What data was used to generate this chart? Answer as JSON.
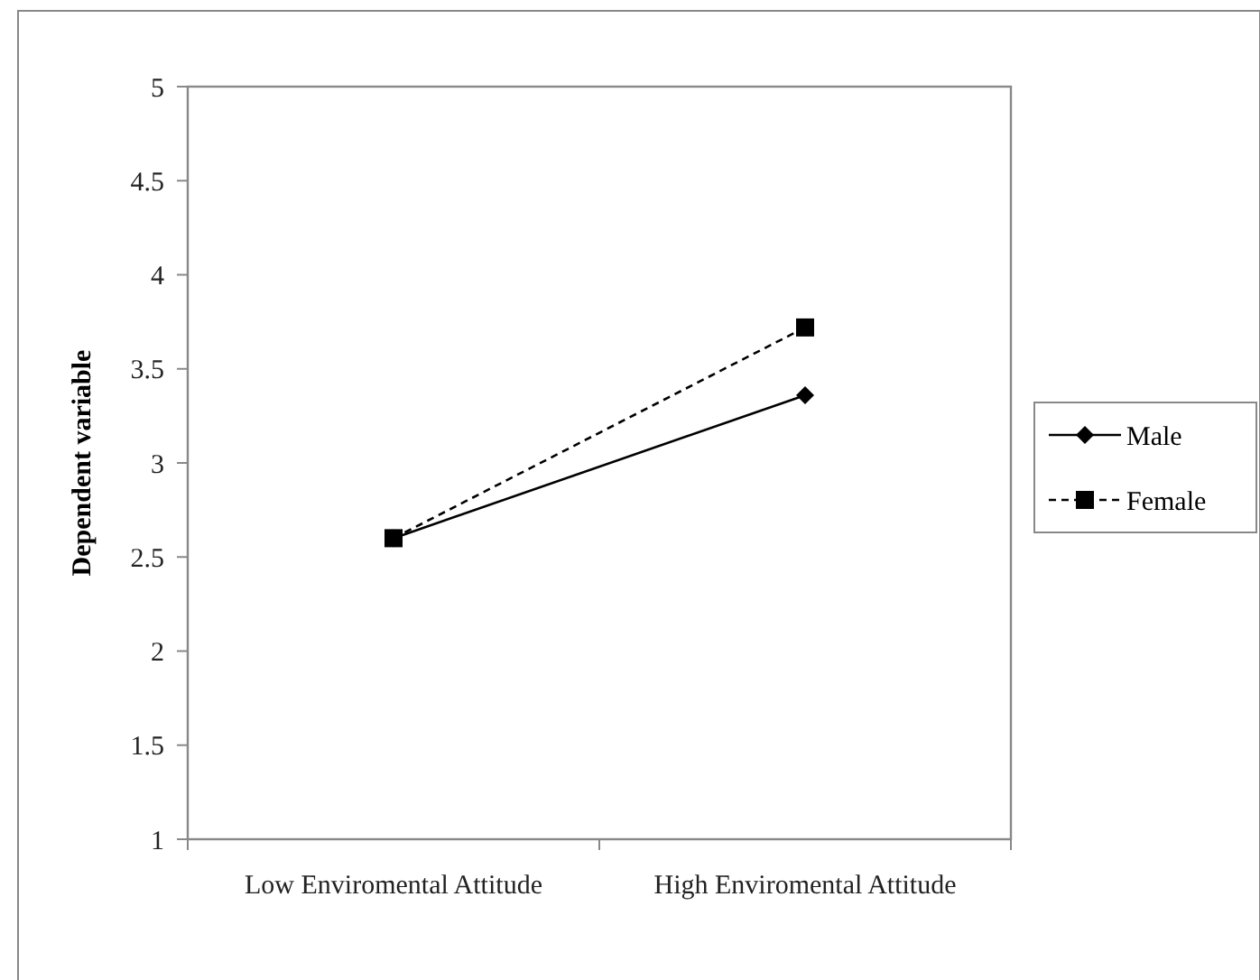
{
  "chart_data": {
    "type": "line",
    "ylabel": "Dependent variable",
    "categories": [
      "Low Enviromental Attitude",
      "High Enviromental Attitude"
    ],
    "series": [
      {
        "name": "Male",
        "color": "#000000",
        "values": [
          2.6,
          3.36
        ],
        "marker": "diamond",
        "line_style": "solid"
      },
      {
        "name": "Female",
        "color": "#000000",
        "values": [
          2.6,
          3.72
        ],
        "marker": "square",
        "line_style": "dashed"
      }
    ],
    "ylim": [
      1,
      5
    ],
    "yticks": [
      1,
      1.5,
      2,
      2.5,
      3,
      3.5,
      4,
      4.5,
      5
    ],
    "grid": false,
    "legend": "right"
  }
}
